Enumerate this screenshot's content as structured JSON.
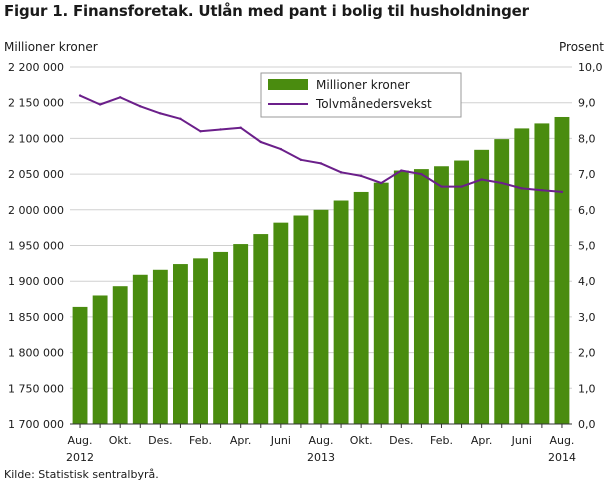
{
  "title": "Figur 1. Finansforetak. Utlån med pant i bolig til husholdninger",
  "source": "Kilde: Statistisk sentralbyrå.",
  "colors": {
    "bar": "#4a8c0f",
    "line": "#6b1f8a",
    "grid": "#d0d0d0",
    "axis": "#333333"
  },
  "chart_data": {
    "type": "bar+line",
    "ylabel_left": "Millioner  kroner",
    "ylabel_right": "Prosent",
    "ylim_left": [
      1700000,
      2200000
    ],
    "ylim_right": [
      0,
      10
    ],
    "left_ticks": [
      "1 700 000",
      "1 750 000",
      "1 800 000",
      "1 850 000",
      "1 900 000",
      "1 950 000",
      "2 000 000",
      "2 050 000",
      "2 100 000",
      "2 150 000",
      "2 200 000"
    ],
    "right_ticks": [
      "0,0",
      "1,0",
      "2,0",
      "3,0",
      "4,0",
      "5,0",
      "6,0",
      "7,0",
      "8,0",
      "9,0",
      "10,0"
    ],
    "categories": [
      "2012-08",
      "2012-09",
      "2012-10",
      "2012-11",
      "2012-12",
      "2013-01",
      "2013-02",
      "2013-03",
      "2013-04",
      "2013-05",
      "2013-06",
      "2013-07",
      "2013-08",
      "2013-09",
      "2013-10",
      "2013-11",
      "2013-12",
      "2014-01",
      "2014-02",
      "2014-03",
      "2014-04",
      "2014-05",
      "2014-06",
      "2014-07",
      "2014-08"
    ],
    "x_tick_labels": [
      "Aug.",
      "",
      "Okt.",
      "",
      "Des.",
      "",
      "Feb.",
      "",
      "Apr.",
      "",
      "Juni",
      "",
      "Aug.",
      "",
      "Okt.",
      "",
      "Des.",
      "",
      "Feb.",
      "",
      "Apr.",
      "",
      "Juni",
      "",
      "Aug."
    ],
    "year_labels": [
      {
        "index": 0,
        "text": "2012"
      },
      {
        "index": 12,
        "text": "2013"
      },
      {
        "index": 24,
        "text": "2014"
      }
    ],
    "legend": {
      "placement": "top-center",
      "entries": [
        "Millioner kroner",
        "Tolvmånedersvekst"
      ]
    },
    "series": [
      {
        "name": "Millioner kroner",
        "axis": "left",
        "type": "bar",
        "values": [
          1864000,
          1880000,
          1893000,
          1909000,
          1916000,
          1924000,
          1932000,
          1941000,
          1952000,
          1966000,
          1982000,
          1992000,
          2000000,
          2013000,
          2025000,
          2038000,
          2055000,
          2057000,
          2061000,
          2069000,
          2084000,
          2099000,
          2114000,
          2121000,
          2130000
        ]
      },
      {
        "name": "Tolvmånedersvekst",
        "axis": "right",
        "type": "line",
        "values": [
          9.2,
          8.95,
          9.15,
          8.9,
          8.7,
          8.55,
          8.2,
          8.25,
          8.3,
          7.9,
          7.7,
          7.4,
          7.3,
          7.05,
          6.95,
          6.75,
          7.1,
          7.0,
          6.65,
          6.65,
          6.85,
          6.75,
          6.6,
          6.55,
          6.5
        ]
      }
    ],
    "grid": true
  }
}
